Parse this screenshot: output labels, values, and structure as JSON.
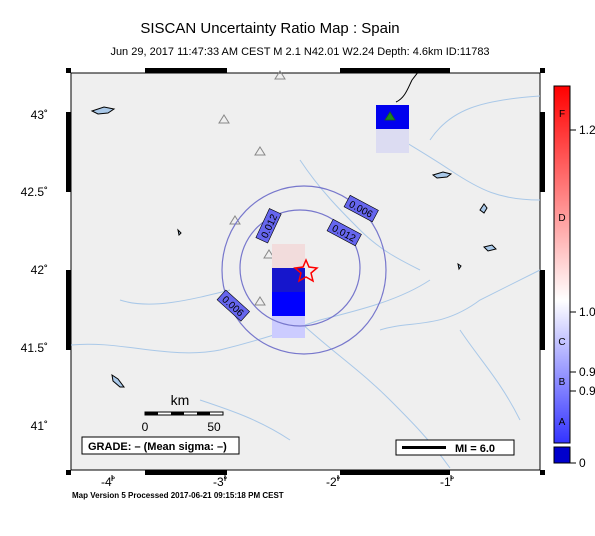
{
  "header": {
    "title": "SISCAN Uncertainty Ratio Map : Spain",
    "subtitle": "Jun 29, 2017 11:47:33 AM CEST   M 2.1    N42.01 W2.24    Depth: 4.6km    ID:11783"
  },
  "axes": {
    "lon_ticks": [
      "-4˚",
      "-3˚",
      "-2˚",
      "-1˚"
    ],
    "lat_ticks": [
      "43˚",
      "42.5˚",
      "42˚",
      "41.5˚",
      "41˚"
    ],
    "lon_range": [
      -4.25,
      -0.1
    ],
    "lat_range": [
      40.78,
      43.28
    ]
  },
  "contours": [
    {
      "label": "0.006"
    },
    {
      "label": "0.012"
    },
    {
      "label": "0.012"
    },
    {
      "label": "0.006"
    }
  ],
  "scale_bar": {
    "unit": "km",
    "ticks": [
      "0",
      "50"
    ]
  },
  "grade_box": {
    "text": "GRADE: – (Mean sigma: –)"
  },
  "legend_box": {
    "text": "MI = 6.0"
  },
  "colorbar": {
    "letters": [
      "F",
      "D",
      "C",
      "B",
      "A"
    ],
    "tick_labels": [
      "1.2",
      "1.0",
      "0.9",
      "0.9",
      "0"
    ],
    "colors": {
      "top": "#ff0000",
      "mid": "#ffffff",
      "low": "#3333ff",
      "bottom": "#0000cc"
    }
  },
  "footer": {
    "text": "Map Version 5 Processed 2017-06-21 09:15:18 PM CEST"
  },
  "colors": {
    "map_bg": "#f0f0f0",
    "contour": "#7777cc",
    "river": "#a9c8e8",
    "cell_dark": "#0000ee",
    "epicenter": "#ff0000"
  }
}
